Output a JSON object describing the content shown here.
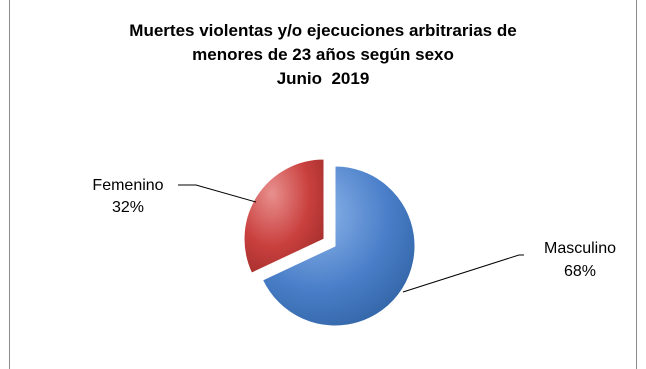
{
  "chart_data": {
    "type": "pie",
    "title_lines": [
      "Muertes violentas y/o ejecuciones arbitrarias de",
      "menores de 23 años según sexo",
      "Junio  2019"
    ],
    "slices": [
      {
        "label": "Masculino",
        "pct_label": "68%",
        "value": 68,
        "color": "#4a7fc9",
        "exploded": false
      },
      {
        "label": "Femenino",
        "pct_label": "32%",
        "value": 32,
        "color": "#c9403e",
        "exploded": true
      }
    ]
  }
}
